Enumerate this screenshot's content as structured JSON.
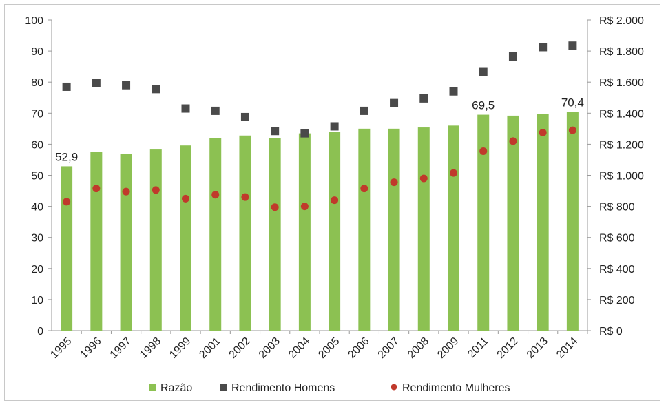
{
  "chart_data": {
    "type": "bar+scatter",
    "categories": [
      "1995",
      "1996",
      "1997",
      "1998",
      "1999",
      "2001",
      "2002",
      "2003",
      "2004",
      "2005",
      "2006",
      "2007",
      "2008",
      "2009",
      "2011",
      "2012",
      "2013",
      "2014"
    ],
    "series": [
      {
        "name": "Razão",
        "kind": "bar",
        "axis": "left",
        "color": "#8cc152",
        "values": [
          52.9,
          57.5,
          56.8,
          58.3,
          59.6,
          62.0,
          62.8,
          62.0,
          63.5,
          63.9,
          65.0,
          65.0,
          65.4,
          66.0,
          69.5,
          69.2,
          69.8,
          70.4
        ]
      },
      {
        "name": "Rendimento Homens",
        "kind": "square-marker",
        "axis": "right",
        "color": "#4a4a4a",
        "values": [
          1570,
          1595,
          1580,
          1555,
          1430,
          1415,
          1375,
          1285,
          1270,
          1315,
          1415,
          1465,
          1495,
          1540,
          1665,
          1765,
          1825,
          1835
        ]
      },
      {
        "name": "Rendimento Mulheres",
        "kind": "circle-marker",
        "axis": "right",
        "color": "#c0392b",
        "values": [
          830,
          915,
          895,
          905,
          850,
          875,
          860,
          795,
          800,
          840,
          915,
          955,
          980,
          1015,
          1155,
          1220,
          1275,
          1290
        ]
      }
    ],
    "data_labels": [
      {
        "category": "1995",
        "text": "52,9"
      },
      {
        "category": "2011",
        "text": "69,5"
      },
      {
        "category": "2014",
        "text": "70,4"
      }
    ],
    "left_axis": {
      "min": 0,
      "max": 100,
      "ticks": [
        0,
        10,
        20,
        30,
        40,
        50,
        60,
        70,
        80,
        90,
        100
      ],
      "tick_labels": [
        "0",
        "10",
        "20",
        "30",
        "40",
        "50",
        "60",
        "70",
        "80",
        "90",
        "100"
      ]
    },
    "right_axis": {
      "min": 0,
      "max": 2000,
      "ticks": [
        0,
        200,
        400,
        600,
        800,
        1000,
        1200,
        1400,
        1600,
        1800,
        2000
      ],
      "tick_labels": [
        "R$ 0",
        "R$ 200",
        "R$ 400",
        "R$ 600",
        "R$ 800",
        "R$ 1.000",
        "R$ 1.200",
        "R$ 1.400",
        "R$ 1.600",
        "R$ 1.800",
        "R$ 2.000"
      ]
    },
    "legend": {
      "position": "bottom",
      "items": [
        "Razão",
        "Rendimento Homens",
        "Rendimento Mulheres"
      ]
    },
    "grid": false
  }
}
